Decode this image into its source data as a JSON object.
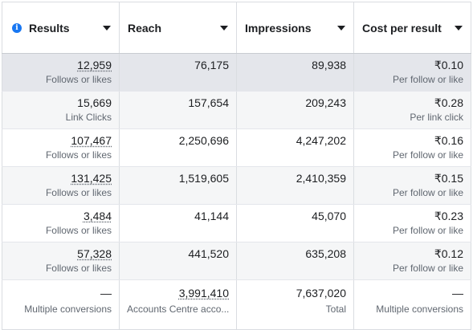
{
  "headers": {
    "results": "Results",
    "reach": "Reach",
    "impressions": "Impressions",
    "cost": "Cost per result",
    "results_icon": "info-icon"
  },
  "rows": [
    {
      "results": "12,959",
      "results_sub": "Follows or likes",
      "reach": "76,175",
      "impressions": "89,938",
      "cost": "₹0.10",
      "cost_sub": "Per follow or like"
    },
    {
      "results": "15,669",
      "results_sub": "Link Clicks",
      "reach": "157,654",
      "impressions": "209,243",
      "cost": "₹0.28",
      "cost_sub": "Per link click"
    },
    {
      "results": "107,467",
      "results_sub": "Follows or likes",
      "reach": "2,250,696",
      "impressions": "4,247,202",
      "cost": "₹0.16",
      "cost_sub": "Per follow or like"
    },
    {
      "results": "131,425",
      "results_sub": "Follows or likes",
      "reach": "1,519,605",
      "impressions": "2,410,359",
      "cost": "₹0.15",
      "cost_sub": "Per follow or like"
    },
    {
      "results": "3,484",
      "results_sub": "Follows or likes",
      "reach": "41,144",
      "impressions": "45,070",
      "cost": "₹0.23",
      "cost_sub": "Per follow or like"
    },
    {
      "results": "57,328",
      "results_sub": "Follows or likes",
      "reach": "441,520",
      "impressions": "635,208",
      "cost": "₹0.12",
      "cost_sub": "Per follow or like"
    }
  ],
  "totals": {
    "results": "—",
    "results_sub": "Multiple conversions",
    "reach": "3,991,410",
    "reach_sub": "Accounts Centre acco...",
    "impressions": "7,637,020",
    "impressions_sub": "Total",
    "cost": "—",
    "cost_sub": "Multiple conversions"
  }
}
